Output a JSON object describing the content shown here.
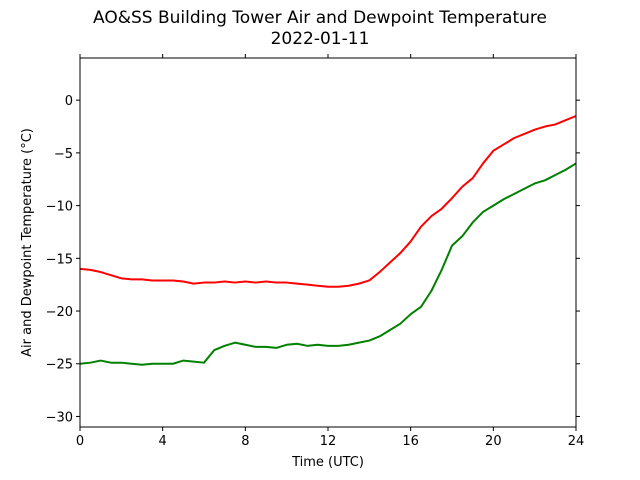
{
  "chart_data": {
    "type": "line",
    "title": "AO&SS Building Tower Air and Dewpoint Temperature",
    "subtitle": "2022-01-11",
    "xlabel": "Time (UTC)",
    "ylabel": "Air and Dewpoint Temperature (°C)",
    "xlim": [
      0,
      24
    ],
    "ylim": [
      -31,
      4
    ],
    "x_ticks": [
      0,
      4,
      8,
      12,
      16,
      20,
      24
    ],
    "y_ticks": [
      -30,
      -25,
      -20,
      -15,
      -10,
      -5,
      0
    ],
    "y_tick_labels": [
      "−30",
      "−25",
      "−20",
      "−15",
      "−10",
      "−5",
      "0"
    ],
    "grid": false,
    "legend": "none",
    "series": [
      {
        "color": "#ff0000",
        "x": [
          0,
          0.5,
          1,
          1.5,
          2,
          2.5,
          3,
          3.5,
          4,
          4.5,
          5,
          5.5,
          6,
          6.5,
          7,
          7.5,
          8,
          8.5,
          9,
          9.5,
          10,
          10.5,
          11,
          11.5,
          12,
          12.5,
          13,
          13.5,
          14,
          14.5,
          15,
          15.5,
          16,
          16.5,
          17,
          17.5,
          18,
          18.5,
          19,
          19.5,
          20,
          20.5,
          21,
          21.5,
          22,
          22.5,
          23,
          23.5,
          24
        ],
        "values": [
          -16.0,
          -16.1,
          -16.3,
          -16.6,
          -16.9,
          -17.0,
          -17.0,
          -17.1,
          -17.1,
          -17.1,
          -17.2,
          -17.4,
          -17.3,
          -17.3,
          -17.2,
          -17.3,
          -17.2,
          -17.3,
          -17.2,
          -17.3,
          -17.3,
          -17.4,
          -17.5,
          -17.6,
          -17.7,
          -17.7,
          -17.6,
          -17.4,
          -17.1,
          -16.3,
          -15.4,
          -14.5,
          -13.4,
          -12.0,
          -11.0,
          -10.3,
          -9.3,
          -8.2,
          -7.4,
          -6.0,
          -4.8,
          -4.2,
          -3.6,
          -3.2,
          -2.8,
          -2.5,
          -2.3,
          -1.9,
          -1.5
        ]
      },
      {
        "color": "#008000",
        "x": [
          0,
          0.5,
          1,
          1.5,
          2,
          2.5,
          3,
          3.5,
          4,
          4.5,
          5,
          5.5,
          6,
          6.5,
          7,
          7.5,
          8,
          8.5,
          9,
          9.5,
          10,
          10.5,
          11,
          11.5,
          12,
          12.5,
          13,
          13.5,
          14,
          14.5,
          15,
          15.5,
          16,
          16.5,
          17,
          17.5,
          18,
          18.5,
          19,
          19.5,
          20,
          20.5,
          21,
          21.5,
          22,
          22.5,
          23,
          23.5,
          24
        ],
        "values": [
          -25.0,
          -24.9,
          -24.7,
          -24.9,
          -24.9,
          -25.0,
          -25.1,
          -25.0,
          -25.0,
          -25.0,
          -24.7,
          -24.8,
          -24.9,
          -23.7,
          -23.3,
          -23.0,
          -23.2,
          -23.4,
          -23.4,
          -23.5,
          -23.2,
          -23.1,
          -23.3,
          -23.2,
          -23.3,
          -23.3,
          -23.2,
          -23.0,
          -22.8,
          -22.4,
          -21.8,
          -21.2,
          -20.3,
          -19.6,
          -18.1,
          -16.1,
          -13.8,
          -12.9,
          -11.6,
          -10.6,
          -10.0,
          -9.4,
          -8.9,
          -8.4,
          -7.9,
          -7.6,
          -7.1,
          -6.6,
          -6.0
        ]
      }
    ]
  }
}
